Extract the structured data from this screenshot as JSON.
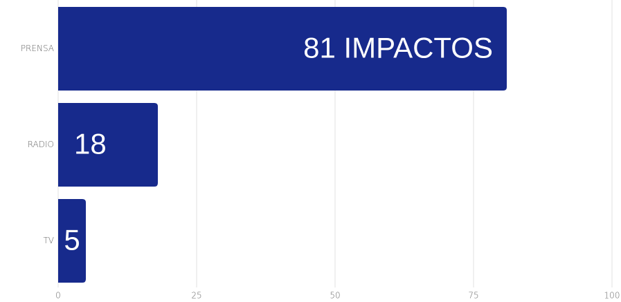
{
  "chart_data": {
    "type": "hbar",
    "categories": [
      "PRENSA",
      "RADIO",
      "TV"
    ],
    "values": [
      81,
      18,
      5
    ],
    "value_labels": [
      "81 IMPACTOS",
      "18",
      "5"
    ],
    "color": "#172a8c",
    "xlim": [
      0,
      100
    ],
    "xticks": [
      0,
      25,
      50,
      75,
      100
    ],
    "grid": true
  }
}
